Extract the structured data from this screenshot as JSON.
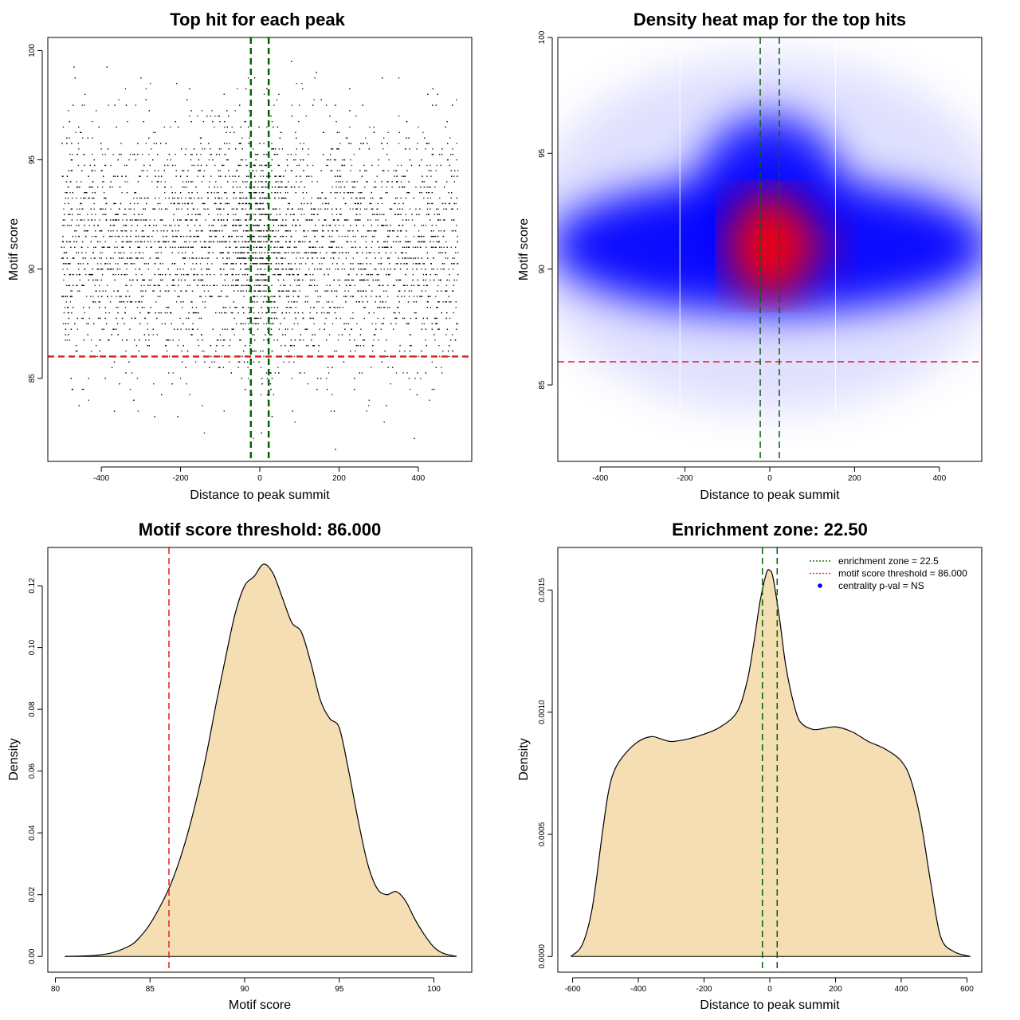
{
  "chart_data": [
    {
      "type": "scatter",
      "title": "Top hit for each peak",
      "xlabel": "Distance to peak summit",
      "ylabel": "Motif score",
      "xlim": [
        -535,
        535
      ],
      "ylim": [
        81.2,
        100.6
      ],
      "xticks": [
        -400,
        -200,
        0,
        200,
        400
      ],
      "yticks": [
        85,
        90,
        95,
        100
      ],
      "x_range_points": [
        -500,
        500
      ],
      "y_range_points": [
        81.7,
        99.9
      ],
      "n_points_estimate": 6000,
      "score_center": 91,
      "score_sd": 2.8,
      "annotations": [
        {
          "kind": "hline",
          "y": 86.0,
          "color": "#e02020",
          "style": "dashed"
        },
        {
          "kind": "vline",
          "x": -22.5,
          "color": "#006400",
          "style": "dashed"
        },
        {
          "kind": "vline",
          "x": 22.5,
          "color": "#006400",
          "style": "dashed"
        }
      ],
      "grid": false
    },
    {
      "type": "heatmap",
      "title": "Density heat map for the top hits",
      "xlabel": "Distance to peak summit",
      "ylabel": "Motif score",
      "xlim": [
        -500,
        500
      ],
      "ylim": [
        81.7,
        100
      ],
      "xticks": [
        -400,
        -200,
        0,
        200,
        400
      ],
      "yticks": [
        85,
        90,
        95,
        100
      ],
      "colors": {
        "low": "#ffffff",
        "mid": "#0000ff",
        "high": "#ff0000"
      },
      "peak": {
        "x": 0,
        "y": 91
      },
      "white_vlines_x": [
        -212,
        155
      ],
      "annotations": [
        {
          "kind": "hline",
          "y": 86.0,
          "color": "#e02020",
          "style": "dashed"
        },
        {
          "kind": "vline",
          "x": -22.5,
          "color": "#006400",
          "style": "dashed"
        },
        {
          "kind": "vline",
          "x": 22.5,
          "color": "#006400",
          "style": "dashed"
        }
      ],
      "grid": false
    },
    {
      "type": "area",
      "title": "Motif score threshold: 86.000",
      "xlabel": "Motif score",
      "ylabel": "Density",
      "xlim": [
        79.6,
        102.0
      ],
      "ylim": [
        -0.0051,
        0.1324
      ],
      "xticks": [
        80,
        85,
        90,
        95,
        100
      ],
      "yticks": [
        0.0,
        0.02,
        0.04,
        0.06,
        0.08,
        0.1,
        0.12
      ],
      "ytick_labels": [
        "0.00",
        "0.02",
        "0.04",
        "0.06",
        "0.08",
        "0.10",
        "0.12"
      ],
      "fill": "#f5deb3",
      "x": [
        80.5,
        82.0,
        83.0,
        84.0,
        84.5,
        85.0,
        85.5,
        86.0,
        86.5,
        87.0,
        87.5,
        88.0,
        88.5,
        89.0,
        89.5,
        90.0,
        90.5,
        91.0,
        91.5,
        92.0,
        92.5,
        93.0,
        93.5,
        94.0,
        94.5,
        95.0,
        95.5,
        96.0,
        96.5,
        97.0,
        97.5,
        98.0,
        98.5,
        99.0,
        99.5,
        100.0,
        100.5,
        101.2
      ],
      "y": [
        0.0,
        0.0003,
        0.0012,
        0.0037,
        0.0065,
        0.0105,
        0.0158,
        0.022,
        0.03,
        0.04,
        0.052,
        0.066,
        0.082,
        0.097,
        0.111,
        0.12,
        0.123,
        0.127,
        0.124,
        0.116,
        0.108,
        0.105,
        0.095,
        0.083,
        0.077,
        0.074,
        0.06,
        0.044,
        0.03,
        0.022,
        0.02,
        0.021,
        0.018,
        0.012,
        0.007,
        0.003,
        0.001,
        0.0
      ],
      "annotations": [
        {
          "kind": "vline",
          "x": 86.0,
          "color": "#e02020",
          "style": "dashed"
        }
      ],
      "grid": false
    },
    {
      "type": "area",
      "title": "Enrichment zone: 22.50",
      "xlabel": "Distance to peak summit",
      "ylabel": "Density",
      "xlim": [
        -645,
        645
      ],
      "ylim": [
        -6.44e-05,
        0.0016744
      ],
      "xticks": [
        -600,
        -400,
        -200,
        0,
        200,
        400,
        600
      ],
      "yticks": [
        0.0,
        0.0005,
        0.001,
        0.0015
      ],
      "ytick_labels": [
        "0.0000",
        "0.0005",
        "0.0010",
        "0.0015"
      ],
      "fill": "#f5deb3",
      "x": [
        -605,
        -570,
        -540,
        -510,
        -490,
        -470,
        -440,
        -400,
        -360,
        -330,
        -300,
        -250,
        -200,
        -150,
        -100,
        -70,
        -50,
        -30,
        -10,
        0,
        10,
        30,
        50,
        80,
        100,
        130,
        150,
        200,
        250,
        300,
        350,
        400,
        430,
        460,
        490,
        520,
        560,
        610
      ],
      "y": [
        0.0,
        5e-05,
        0.0002,
        0.0005,
        0.00068,
        0.00077,
        0.00083,
        0.00088,
        0.0009,
        0.00089,
        0.00088,
        0.00089,
        0.00091,
        0.00094,
        0.001,
        0.00112,
        0.00127,
        0.00145,
        0.00157,
        0.00158,
        0.00155,
        0.00138,
        0.00118,
        0.001,
        0.00095,
        0.00093,
        0.00093,
        0.00094,
        0.00092,
        0.00088,
        0.00085,
        0.0008,
        0.00072,
        0.00055,
        0.0003,
        8e-05,
        2e-05,
        0.0
      ],
      "annotations": [
        {
          "kind": "vline",
          "x": -22.5,
          "color": "#006400",
          "style": "dashed"
        },
        {
          "kind": "vline",
          "x": 22.5,
          "color": "#006400",
          "style": "dashed"
        }
      ],
      "legend": {
        "placement": "top-right",
        "entries": [
          {
            "label": "enrichment zone = 22.5",
            "color": "#006400",
            "symbol": "dotted-line"
          },
          {
            "label": "motif score threshold = 86.000",
            "color": "#e02020",
            "symbol": "dotted-line"
          },
          {
            "label": "centrality p-val = NS",
            "color": "#0000ff",
            "symbol": "dot"
          }
        ]
      },
      "grid": false
    }
  ]
}
